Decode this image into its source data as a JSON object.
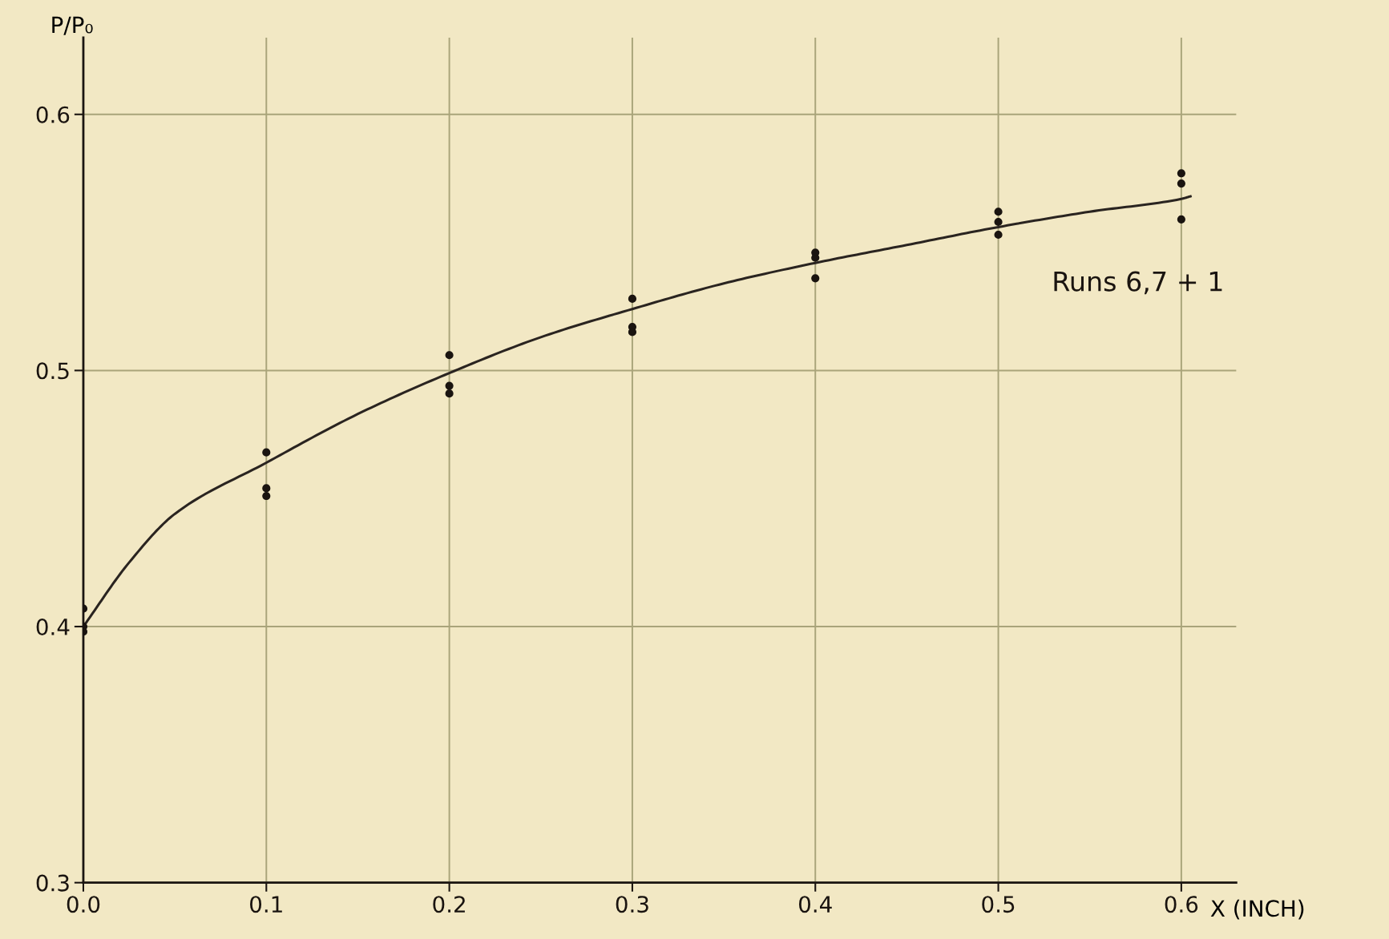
{
  "chart_data": {
    "type": "scatter",
    "xlabel": "X (INCH)",
    "ylabel": "P/P₀",
    "annotations": [
      "Runs 6,7 + 1"
    ],
    "series": [
      {
        "color": "#1a1410",
        "marker": "circle",
        "x": [
          0,
          0,
          0,
          0.1,
          0.1,
          0.1,
          0.2,
          0.2,
          0.2,
          0.3,
          0.3,
          0.3,
          0.4,
          0.4,
          0.4,
          0.5,
          0.5,
          0.5,
          0.6,
          0.6,
          0.6
        ],
        "values": [
          0.407,
          0.4,
          0.398,
          0.468,
          0.454,
          0.451,
          0.506,
          0.494,
          0.491,
          0.528,
          0.517,
          0.515,
          0.546,
          0.544,
          0.536,
          0.562,
          0.558,
          0.553,
          0.577,
          0.573,
          0.559
        ]
      },
      {
        "type": "line",
        "color": "#2a2420",
        "marker": "none",
        "line_style": "solid",
        "x": [
          0,
          0.025,
          0.05,
          0.1,
          0.15,
          0.2,
          0.25,
          0.3,
          0.35,
          0.4,
          0.45,
          0.5,
          0.55,
          0.6,
          0.605
        ],
        "values": [
          0.4,
          0.425,
          0.444,
          0.464,
          0.483,
          0.499,
          0.513,
          0.524,
          0.534,
          0.542,
          0.549,
          0.556,
          0.562,
          0.567,
          0.568
        ]
      }
    ],
    "xlim": [
      0,
      0.63
    ],
    "ylim": [
      0.3,
      0.63
    ],
    "xticks": [
      {
        "value": 0,
        "label": "0.0"
      },
      0.1,
      0.2,
      0.3,
      0.4,
      0.5,
      0.6
    ],
    "yticks": [
      0.3,
      0.4,
      0.5,
      0.6
    ],
    "grid": true
  }
}
